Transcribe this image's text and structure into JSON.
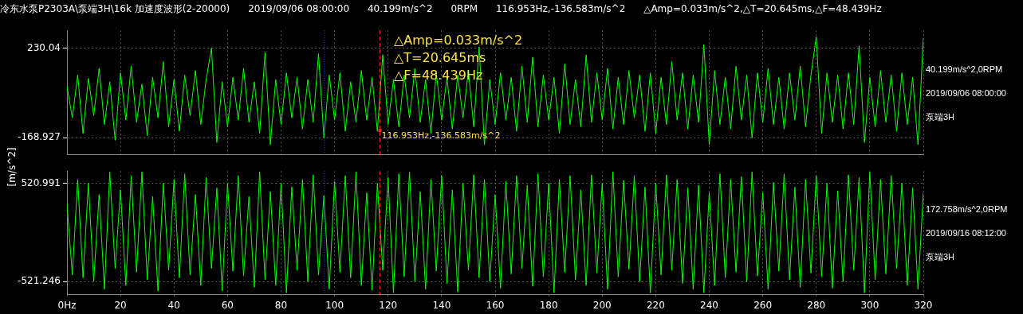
{
  "chart_data": [
    {
      "type": "line",
      "title": "冷东水泵P2303A\\泵端3H\\16k 加速度波形(2-20000)      2019/09/06 08:00:00      40.199m/s^2      0RPM      116.953Hz,-136.583m/s^2      △Amp=0.033m/s^2,△T=20.645ms,△F=48.439Hz",
      "ylabel": "[m/s^2]",
      "xlim": [
        0,
        320
      ],
      "xticks": [
        0,
        20,
        40,
        60,
        80,
        100,
        120,
        140,
        160,
        180,
        200,
        220,
        240,
        260,
        280,
        300,
        320
      ],
      "ylim": [
        -245,
        309
      ],
      "yticks": [
        230.04,
        -168.927
      ],
      "tick_labels": "y",
      "grid": true,
      "marker": "none",
      "line_style": "solid",
      "ref_lines": [
        {
          "axis": "x",
          "value": 96.2,
          "color": "#3040ff",
          "line_style": "dotted"
        },
        {
          "axis": "x",
          "value": 116.953,
          "color": "#ff2020",
          "line_style": "dashed"
        }
      ],
      "annotations": [
        "△Amp=0.033m/s^2",
        "△T=20.645ms",
        "△F=48.439Hz",
        {
          "text": "116.953Hz,-136.583m/s^2",
          "x": 116.953,
          "y": -136.583
        },
        "40.199m/s^2,0RPM",
        "2019/09/06 08:00:00",
        "泵端3H"
      ],
      "series": [
        {
          "color": "#00ff00",
          "x": [
            0,
            2,
            4,
            6,
            8,
            10,
            12,
            14,
            16,
            18,
            20,
            22,
            24,
            26,
            28,
            30,
            32,
            34,
            36,
            38,
            40,
            42,
            44,
            46,
            48,
            50,
            52,
            54,
            56,
            58,
            60,
            62,
            64,
            66,
            68,
            70,
            72,
            74,
            76,
            78,
            80,
            82,
            84,
            86,
            88,
            90,
            92,
            94,
            96,
            98,
            100,
            102,
            104,
            106,
            108,
            110,
            112,
            114,
            116,
            118,
            120,
            122,
            124,
            126,
            128,
            130,
            132,
            134,
            136,
            138,
            140,
            142,
            144,
            146,
            148,
            150,
            152,
            154,
            156,
            158,
            160,
            162,
            164,
            166,
            168,
            170,
            172,
            174,
            176,
            178,
            180,
            182,
            184,
            186,
            188,
            190,
            192,
            194,
            196,
            198,
            200,
            202,
            204,
            206,
            208,
            210,
            212,
            214,
            216,
            218,
            220,
            222,
            224,
            226,
            228,
            230,
            232,
            234,
            236,
            238,
            240,
            242,
            244,
            246,
            248,
            250,
            252,
            254,
            256,
            258,
            260,
            262,
            264,
            266,
            268,
            270,
            272,
            274,
            276,
            278,
            280,
            282,
            284,
            286,
            288,
            290,
            292,
            294,
            296,
            298,
            300,
            302,
            304,
            306,
            308,
            310,
            312,
            314,
            316,
            318,
            320
          ],
          "values": [
            60,
            -80,
            110,
            -150,
            95,
            -70,
            140,
            -110,
            80,
            -180,
            120,
            -90,
            150,
            -100,
            70,
            -160,
            100,
            -80,
            170,
            -120,
            90,
            -140,
            110,
            -70,
            130,
            -110,
            90,
            230,
            -190,
            80,
            -120,
            100,
            -90,
            140,
            -100,
            80,
            -150,
            210,
            -200,
            90,
            -110,
            120,
            -80,
            100,
            -130,
            90,
            -100,
            205,
            -170,
            110,
            -90,
            120,
            -140,
            80,
            -100,
            130,
            -90,
            100,
            -140,
            200,
            -110,
            90,
            -120,
            110,
            -80,
            140,
            -100,
            90,
            -150,
            120,
            -90,
            100,
            -130,
            110,
            -80,
            130,
            -120,
            235,
            -200,
            90,
            -110,
            120,
            -90,
            100,
            -140,
            150,
            -100,
            190,
            -120,
            110,
            -90,
            100,
            -150,
            160,
            -110,
            90,
            -120,
            200,
            -100,
            120,
            -90,
            140,
            -130,
            100,
            -110,
            130,
            -80,
            110,
            -140,
            120,
            -150,
            100,
            -110,
            170,
            -90,
            120,
            -130,
            110,
            -100,
            246,
            -200,
            130,
            -110,
            100,
            -130,
            150,
            -90,
            110,
            -170,
            120,
            -100,
            140,
            -110,
            100,
            -130,
            120,
            -90,
            150,
            -120,
            110,
            280,
            -150,
            120,
            -100,
            110,
            -130,
            120,
            -110,
            240,
            -190,
            100,
            -120,
            130,
            -100,
            110,
            -140,
            120,
            -110,
            100,
            -200,
            276
          ]
        }
      ]
    },
    {
      "type": "line",
      "xlim": [
        0,
        320
      ],
      "xticks": [
        {
          "value": 0,
          "label": "0Hz"
        },
        20,
        40,
        60,
        80,
        100,
        120,
        140,
        160,
        180,
        200,
        220,
        240,
        260,
        280,
        300,
        320
      ],
      "ylim": [
        -658,
        649
      ],
      "yticks": [
        520.991,
        -521.246
      ],
      "grid": true,
      "marker": "none",
      "line_style": "solid",
      "ref_lines": [
        {
          "axis": "x",
          "value": 96.2,
          "color": "#3040ff",
          "line_style": "dotted"
        },
        {
          "axis": "x",
          "value": 116.953,
          "color": "#ff2020",
          "line_style": "dashed"
        }
      ],
      "annotations": [
        "172.758m/s^2,0RPM",
        "2019/09/16 08:12:00",
        "泵端3H"
      ],
      "series": [
        {
          "color": "#00ff00",
          "x": [
            0,
            2,
            4,
            6,
            8,
            10,
            12,
            14,
            16,
            18,
            20,
            22,
            24,
            26,
            28,
            30,
            32,
            34,
            36,
            38,
            40,
            42,
            44,
            46,
            48,
            50,
            52,
            54,
            56,
            58,
            60,
            62,
            64,
            66,
            68,
            70,
            72,
            74,
            76,
            78,
            80,
            82,
            84,
            86,
            88,
            90,
            92,
            94,
            96,
            98,
            100,
            102,
            104,
            106,
            108,
            110,
            112,
            114,
            116,
            118,
            120,
            122,
            124,
            126,
            128,
            130,
            132,
            134,
            136,
            138,
            140,
            142,
            144,
            146,
            148,
            150,
            152,
            154,
            156,
            158,
            160,
            162,
            164,
            166,
            168,
            170,
            172,
            174,
            176,
            178,
            180,
            182,
            184,
            186,
            188,
            190,
            192,
            194,
            196,
            198,
            200,
            202,
            204,
            206,
            208,
            210,
            212,
            214,
            216,
            218,
            220,
            222,
            224,
            226,
            228,
            230,
            232,
            234,
            236,
            238,
            240,
            242,
            244,
            246,
            248,
            250,
            252,
            254,
            256,
            258,
            260,
            262,
            264,
            266,
            268,
            270,
            272,
            274,
            276,
            278,
            280,
            282,
            284,
            286,
            288,
            290,
            292,
            294,
            296,
            298,
            300,
            302,
            304,
            306,
            308,
            310,
            312,
            314,
            316,
            318,
            320
          ],
          "values": [
            300,
            -450,
            560,
            -480,
            520,
            -520,
            400,
            -600,
            640,
            -380,
            450,
            -560,
            600,
            -420,
            640,
            -500,
            380,
            -620,
            520,
            -400,
            560,
            -480,
            620,
            -450,
            400,
            -560,
            580,
            -380,
            470,
            -620,
            520,
            -410,
            600,
            -460,
            380,
            -580,
            640,
            -500,
            430,
            -560,
            520,
            -640,
            480,
            -400,
            560,
            -520,
            610,
            -450,
            390,
            -600,
            540,
            -420,
            600,
            -480,
            640,
            -560,
            420,
            -610,
            520,
            -400,
            580,
            -640,
            620,
            -470,
            640,
            -520,
            430,
            -600,
            560,
            -410,
            600,
            -540,
            450,
            -630,
            520,
            -400,
            610,
            -480,
            560,
            -520,
            400,
            -590,
            540,
            -440,
            600,
            -380,
            500,
            -570,
            620,
            -470,
            520,
            -640,
            560,
            -420,
            600,
            -500,
            450,
            -560,
            610,
            -430,
            520,
            -600,
            640,
            -470,
            550,
            -390,
            600,
            -520,
            480,
            -640,
            520,
            -450,
            610,
            -400,
            560,
            -540,
            470,
            -600,
            500,
            -640,
            420,
            -560,
            620,
            -480,
            560,
            -420,
            590,
            -520,
            640,
            -460,
            420,
            -600,
            530,
            -410,
            620,
            -500,
            480,
            -580,
            560,
            -430,
            600,
            -470,
            520,
            -590,
            440,
            -520,
            610,
            -400,
            580,
            -640,
            640,
            -500,
            560,
            -440,
            600,
            -380,
            520,
            -560,
            470,
            -600,
            420
          ]
        }
      ]
    }
  ]
}
